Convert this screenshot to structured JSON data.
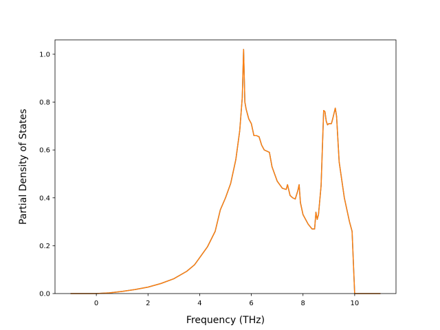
{
  "chart_data": {
    "type": "line",
    "title": "",
    "xlabel": "Frequency (THz)",
    "ylabel": "Partial Density of States",
    "xlim": [
      -1.6,
      11.6
    ],
    "ylim": [
      0.0,
      1.06
    ],
    "xticks": [
      0,
      2,
      4,
      6,
      8,
      10
    ],
    "yticks": [
      0.0,
      0.2,
      0.4,
      0.6,
      0.8,
      1.0
    ],
    "xtick_labels": [
      "0",
      "2",
      "4",
      "6",
      "8",
      "10"
    ],
    "ytick_labels": [
      "0.0",
      "0.2",
      "0.4",
      "0.6",
      "0.8",
      "1.0"
    ],
    "grid": false,
    "series": [
      {
        "color": "#1f77b4",
        "x": [
          -1.0,
          0.0,
          0.5,
          1.0,
          1.5,
          2.0,
          2.5,
          3.0,
          3.5,
          3.8,
          4.0,
          4.3,
          4.6,
          4.8,
          5.0,
          5.2,
          5.4,
          5.55,
          5.65,
          5.7,
          5.75,
          5.8,
          5.9,
          6.0,
          6.1,
          6.2,
          6.3,
          6.4,
          6.5,
          6.7,
          6.8,
          7.0,
          7.2,
          7.35,
          7.4,
          7.5,
          7.6,
          7.7,
          7.8,
          7.85,
          7.9,
          8.0,
          8.2,
          8.35,
          8.45,
          8.5,
          8.55,
          8.6,
          8.7,
          8.8,
          8.85,
          8.9,
          8.95,
          9.0,
          9.1,
          9.15,
          9.25,
          9.3,
          9.4,
          9.6,
          9.8,
          9.9,
          10.0,
          11.0
        ],
        "y": [
          0.0,
          0.0,
          0.003,
          0.009,
          0.017,
          0.027,
          0.042,
          0.062,
          0.093,
          0.12,
          0.15,
          0.195,
          0.26,
          0.35,
          0.4,
          0.46,
          0.56,
          0.68,
          0.82,
          1.02,
          0.8,
          0.77,
          0.73,
          0.71,
          0.66,
          0.66,
          0.655,
          0.62,
          0.6,
          0.59,
          0.53,
          0.47,
          0.44,
          0.435,
          0.455,
          0.41,
          0.4,
          0.395,
          0.43,
          0.455,
          0.38,
          0.33,
          0.29,
          0.27,
          0.27,
          0.34,
          0.31,
          0.33,
          0.45,
          0.765,
          0.76,
          0.72,
          0.705,
          0.71,
          0.71,
          0.73,
          0.775,
          0.74,
          0.55,
          0.4,
          0.3,
          0.26,
          0.0,
          0.0
        ]
      },
      {
        "color": "#ff7f0e",
        "x": [
          -1.0,
          0.0,
          0.5,
          1.0,
          1.5,
          2.0,
          2.5,
          3.0,
          3.5,
          3.8,
          4.0,
          4.3,
          4.6,
          4.8,
          5.0,
          5.2,
          5.4,
          5.55,
          5.65,
          5.7,
          5.75,
          5.8,
          5.9,
          6.0,
          6.1,
          6.2,
          6.3,
          6.4,
          6.5,
          6.7,
          6.8,
          7.0,
          7.2,
          7.35,
          7.4,
          7.5,
          7.6,
          7.7,
          7.8,
          7.85,
          7.9,
          8.0,
          8.2,
          8.35,
          8.45,
          8.5,
          8.55,
          8.6,
          8.7,
          8.8,
          8.85,
          8.9,
          8.95,
          9.0,
          9.1,
          9.15,
          9.25,
          9.3,
          9.4,
          9.6,
          9.8,
          9.9,
          10.0,
          11.0
        ],
        "y": [
          0.0,
          0.0,
          0.003,
          0.009,
          0.017,
          0.027,
          0.042,
          0.062,
          0.093,
          0.12,
          0.15,
          0.195,
          0.26,
          0.35,
          0.4,
          0.46,
          0.56,
          0.68,
          0.82,
          1.02,
          0.8,
          0.77,
          0.73,
          0.71,
          0.66,
          0.66,
          0.655,
          0.62,
          0.6,
          0.59,
          0.53,
          0.47,
          0.44,
          0.435,
          0.455,
          0.41,
          0.4,
          0.395,
          0.43,
          0.455,
          0.38,
          0.33,
          0.29,
          0.27,
          0.27,
          0.34,
          0.31,
          0.33,
          0.45,
          0.765,
          0.76,
          0.72,
          0.705,
          0.71,
          0.71,
          0.73,
          0.775,
          0.74,
          0.55,
          0.4,
          0.3,
          0.26,
          0.0,
          0.0
        ]
      }
    ]
  }
}
